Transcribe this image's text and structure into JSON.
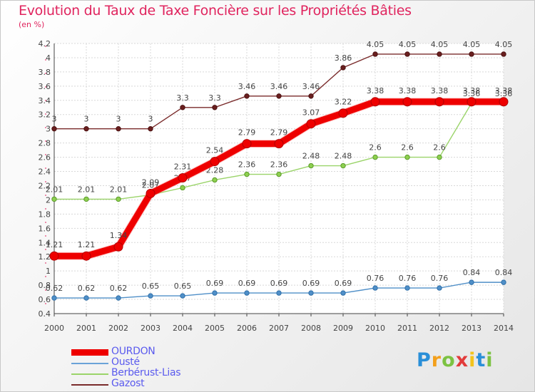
{
  "header": {
    "title": "Evolution du Taux de Taxe Foncière sur les Propriétés Bâties",
    "unit": "(en %)"
  },
  "chart_data": {
    "type": "line",
    "title": "Evolution du Taux de Taxe Foncière sur les Propriétés Bâties",
    "ylabel": "(en %)",
    "xlabel": "",
    "ylim": [
      0.4,
      4.2
    ],
    "yticks": [
      0.4,
      0.6,
      0.8,
      1,
      1.2,
      1.4,
      1.6,
      1.8,
      2,
      2.2,
      2.4,
      2.6,
      2.8,
      3,
      3.2,
      3.4,
      3.6,
      3.8,
      4,
      4.2
    ],
    "ytick_labels": [
      "0.4",
      "0.6",
      "0.8",
      "1",
      "1.2",
      "1.4",
      "1.6",
      "1.8",
      "2",
      "2.2",
      "2.4",
      "2.6",
      "2.8",
      "3",
      "3.2",
      "3.4",
      "3.6",
      "3.8",
      "4",
      "4.2"
    ],
    "categories": [
      "2000",
      "2001",
      "2002",
      "2003",
      "2004",
      "2005",
      "2006",
      "2007",
      "2008",
      "2009",
      "2010",
      "2011",
      "2012",
      "2013",
      "2014"
    ],
    "grid": true,
    "series": [
      {
        "name": "Ousté",
        "color": "#4f8fc8",
        "values": [
          0.62,
          0.62,
          0.62,
          0.65,
          0.65,
          0.69,
          0.69,
          0.69,
          0.69,
          0.69,
          0.76,
          0.76,
          0.76,
          0.84,
          0.84
        ],
        "labels": [
          "0.62",
          "0.62",
          "0.62",
          "0.65",
          "0.65",
          "0.69",
          "0.69",
          "0.69",
          "0.69",
          "0.69",
          "0.76",
          "0.76",
          "0.76",
          "0.84",
          "0.84"
        ]
      },
      {
        "name": "Berbérust-Lias",
        "color": "#9bd46a",
        "values": [
          2.01,
          2.01,
          2.01,
          2.07,
          2.17,
          2.28,
          2.36,
          2.36,
          2.48,
          2.48,
          2.6,
          2.6,
          2.6,
          3.36,
          3.36
        ],
        "labels": [
          "2.01",
          "2.01",
          "2.01",
          "2.07",
          "2.17",
          "2.28",
          "2.36",
          "2.36",
          "2.48",
          "2.48",
          "2.6",
          "2.6",
          "2.6",
          "3.36",
          "3.36"
        ]
      },
      {
        "name": "Gazost",
        "color": "#7a2b2b",
        "values": [
          3,
          3,
          3,
          3,
          3.3,
          3.3,
          3.46,
          3.46,
          3.46,
          3.86,
          4.05,
          4.05,
          4.05,
          4.05,
          4.05
        ],
        "labels": [
          "3",
          "3",
          "3",
          "3",
          "3.3",
          "3.3",
          "3.46",
          "3.46",
          "3.46",
          "3.86",
          "4.05",
          "4.05",
          "4.05",
          "4.05",
          "4.05"
        ]
      },
      {
        "name": "OURDON",
        "color": "#ee0000",
        "values": [
          1.21,
          1.21,
          1.34,
          2.09,
          2.31,
          2.54,
          2.79,
          2.79,
          3.07,
          3.22,
          3.38,
          3.38,
          3.38,
          3.38,
          3.38
        ],
        "labels": [
          "1.21",
          "1.21",
          "1.34",
          "2.09",
          "2.31",
          "2.54",
          "2.79",
          "2.79",
          "3.07",
          "3.22",
          "3.38",
          "3.38",
          "3.38",
          "3.38",
          "3.38"
        ]
      }
    ]
  },
  "legend": {
    "items": [
      {
        "label": "OURDON",
        "color": "#ee0000"
      },
      {
        "label": "Ousté",
        "color": "#6aa3d8"
      },
      {
        "label": "Berbérust-Lias",
        "color": "#9bd46a"
      },
      {
        "label": "Gazost",
        "color": "#7a2b2b"
      }
    ]
  },
  "logo": {
    "letters": [
      "P",
      "r",
      "o",
      "x",
      "i",
      "t",
      "i"
    ],
    "colors": [
      "#2a8fd8",
      "#f3a01c",
      "#7cc242",
      "#e23b3b",
      "#f3c31c",
      "#2a8fd8",
      "#7cc242"
    ]
  }
}
